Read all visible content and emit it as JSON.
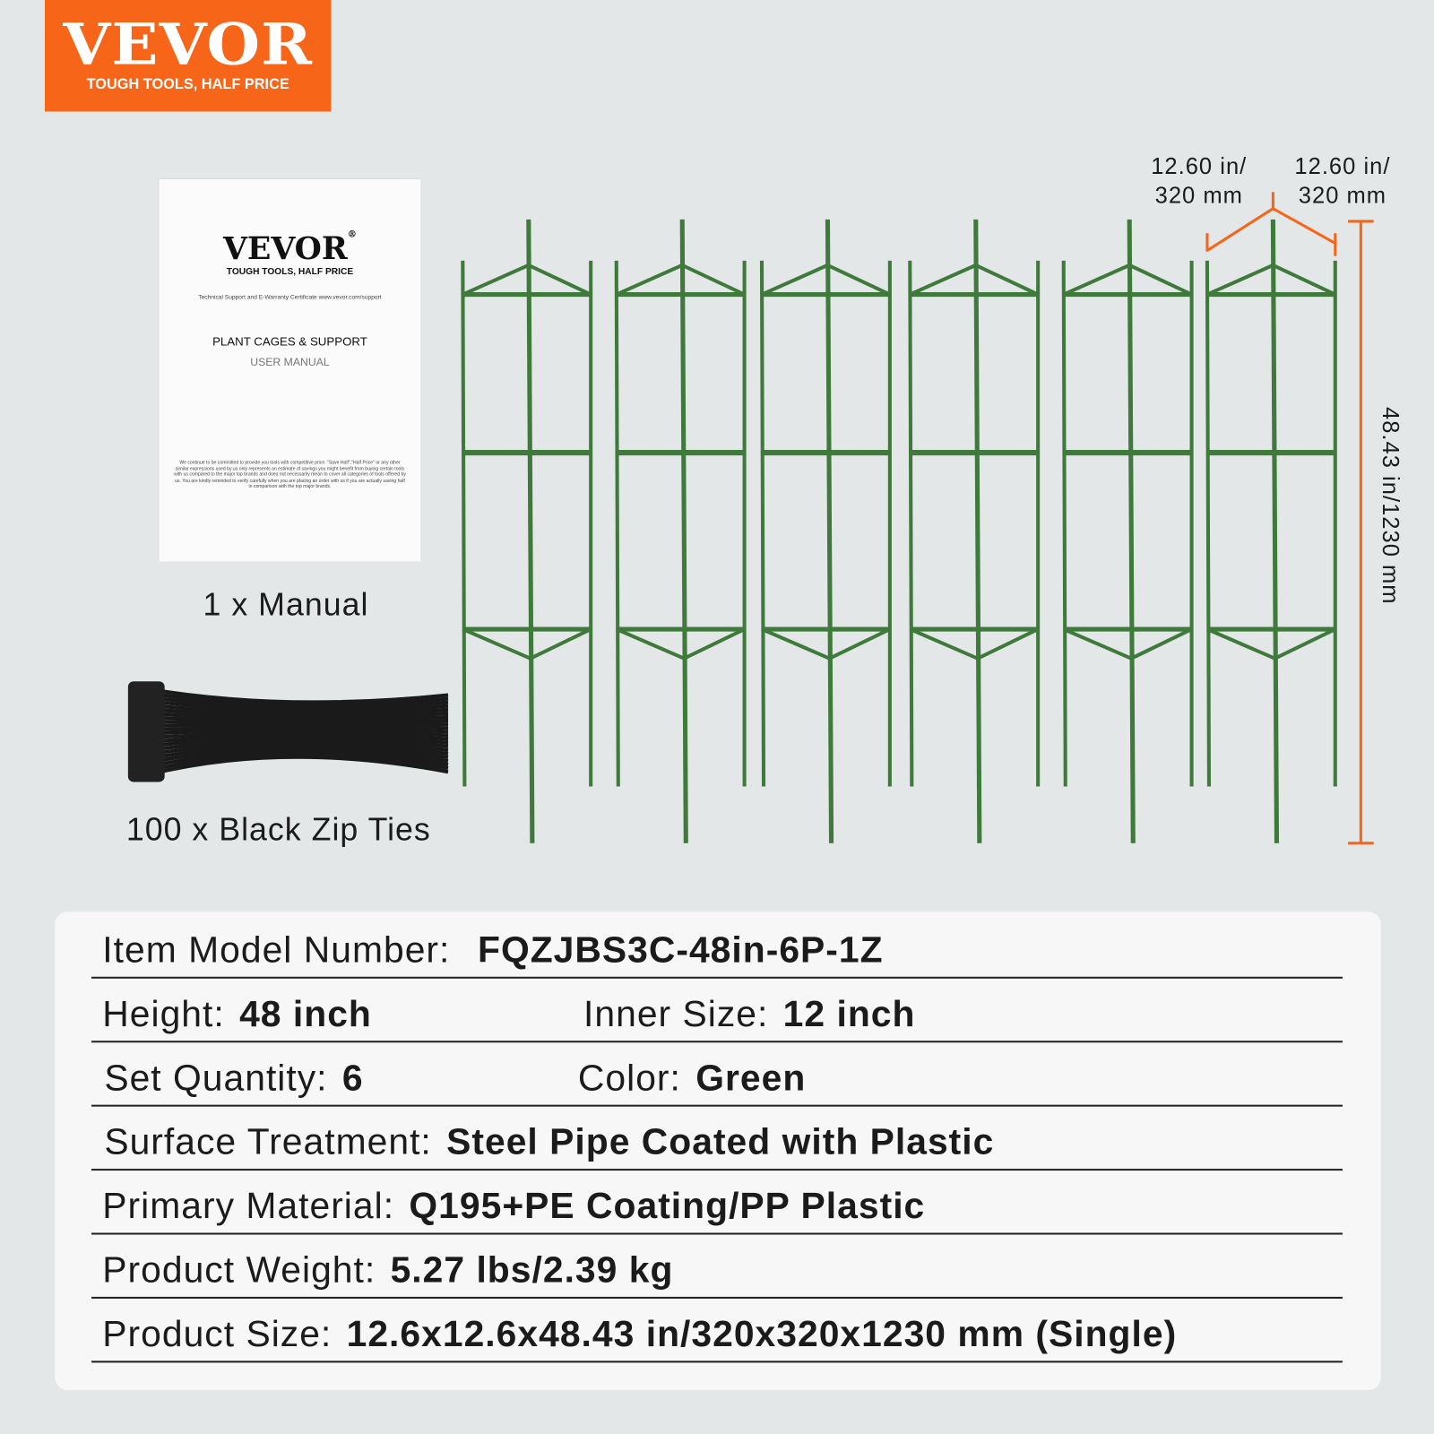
{
  "logo": {
    "brand": "VEVOR",
    "tagline": "TOUGH TOOLS, HALF PRICE",
    "color": "#f76519"
  },
  "manual": {
    "brand": "VEVOR",
    "registered": "®",
    "tagline": "TOUGH TOOLS, HALF PRICE",
    "support": "Technical Support and E-Warranty Certificate www.vevor.com/support",
    "product": "PLANT CAGES & SUPPORT",
    "doc": "USER MANUAL",
    "disclaimer": "We continue to be committed to provide you tools with competitive price. \"Save Half\",\"Half Price\" or any other similar expressions used by us only represents an estimate of savings you might benefit from buying certain tools with us compared to the major top brands and does not necessarily mean to cover all categories of tools offered by us. You are kindly reminded to verify carefully when you are placing an order with us if you are actually saving half in comparison with the top major brands."
  },
  "contents": {
    "manual_label": "1 x Manual",
    "zip_ties_label": "100 x Black Zip Ties"
  },
  "dimensions": {
    "width1": "12.60 in/ 320 mm",
    "width2": "12.60 in/ 320 mm",
    "height": "48.43 in/1230 mm",
    "color": "#f76519"
  },
  "cage_color": "#3f7a3c",
  "specs": [
    {
      "label": "Item Model Number:",
      "value": "FQZJBS3C-48in-6P-1Z"
    },
    {
      "label": "Height:",
      "value": "48 inch",
      "label2": "Inner Size:",
      "value2": "12 inch"
    },
    {
      "label": "Set Quantity:",
      "value": "6",
      "label2": "Color:",
      "value2": "Green"
    },
    {
      "label": "Surface Treatment:",
      "value": "Steel Pipe Coated with Plastic"
    },
    {
      "label": "Primary Material:",
      "value": "Q195+PE Coating/PP Plastic"
    },
    {
      "label": "Product Weight:",
      "value": "5.27 lbs/2.39 kg"
    },
    {
      "label": "Product Size:",
      "value": "12.6x12.6x48.43 in/320x320x1230 mm (Single)"
    }
  ]
}
